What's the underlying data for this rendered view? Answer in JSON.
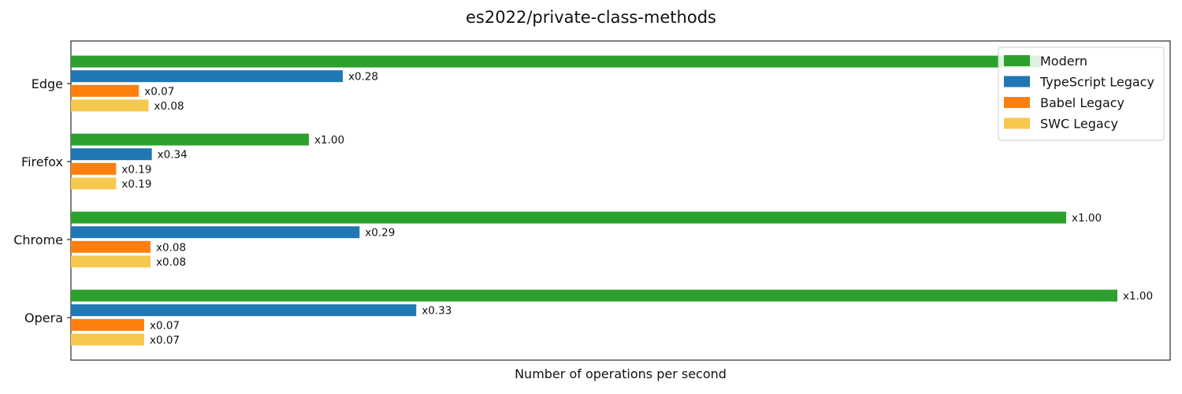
{
  "chart_data": {
    "type": "bar",
    "orientation": "horizontal",
    "title": "es2022/private-class-methods",
    "xlabel": "Number of operations per second",
    "ylabel": "",
    "categories": [
      "Edge",
      "Firefox",
      "Chrome",
      "Opera"
    ],
    "series": [
      {
        "name": "Modern",
        "color": "#2ca02c",
        "values": [
          1.0,
          1.0,
          1.0,
          1.0
        ],
        "labels": [
          "",
          "x1.00",
          "x1.00",
          "x1.00"
        ]
      },
      {
        "name": "TypeScript Legacy",
        "color": "#1f77b4",
        "values": [
          0.28,
          0.34,
          0.29,
          0.33
        ],
        "labels": [
          "x0.28",
          "x0.34",
          "x0.29",
          "x0.33"
        ]
      },
      {
        "name": "Babel Legacy",
        "color": "#ff7f0e",
        "values": [
          0.07,
          0.19,
          0.08,
          0.07
        ],
        "labels": [
          "x0.07",
          "x0.19",
          "x0.08",
          "x0.07"
        ]
      },
      {
        "name": "SWC Legacy",
        "color": "#f6c94e",
        "values": [
          0.08,
          0.19,
          0.08,
          0.07
        ],
        "labels": [
          "x0.08",
          "x0.19",
          "x0.08",
          "x0.07"
        ]
      }
    ],
    "category_scale_max": [
      1232,
      302,
      1263,
      1328
    ],
    "x_axis_ticks": "none",
    "grid": false,
    "legend_position": "top-right"
  }
}
